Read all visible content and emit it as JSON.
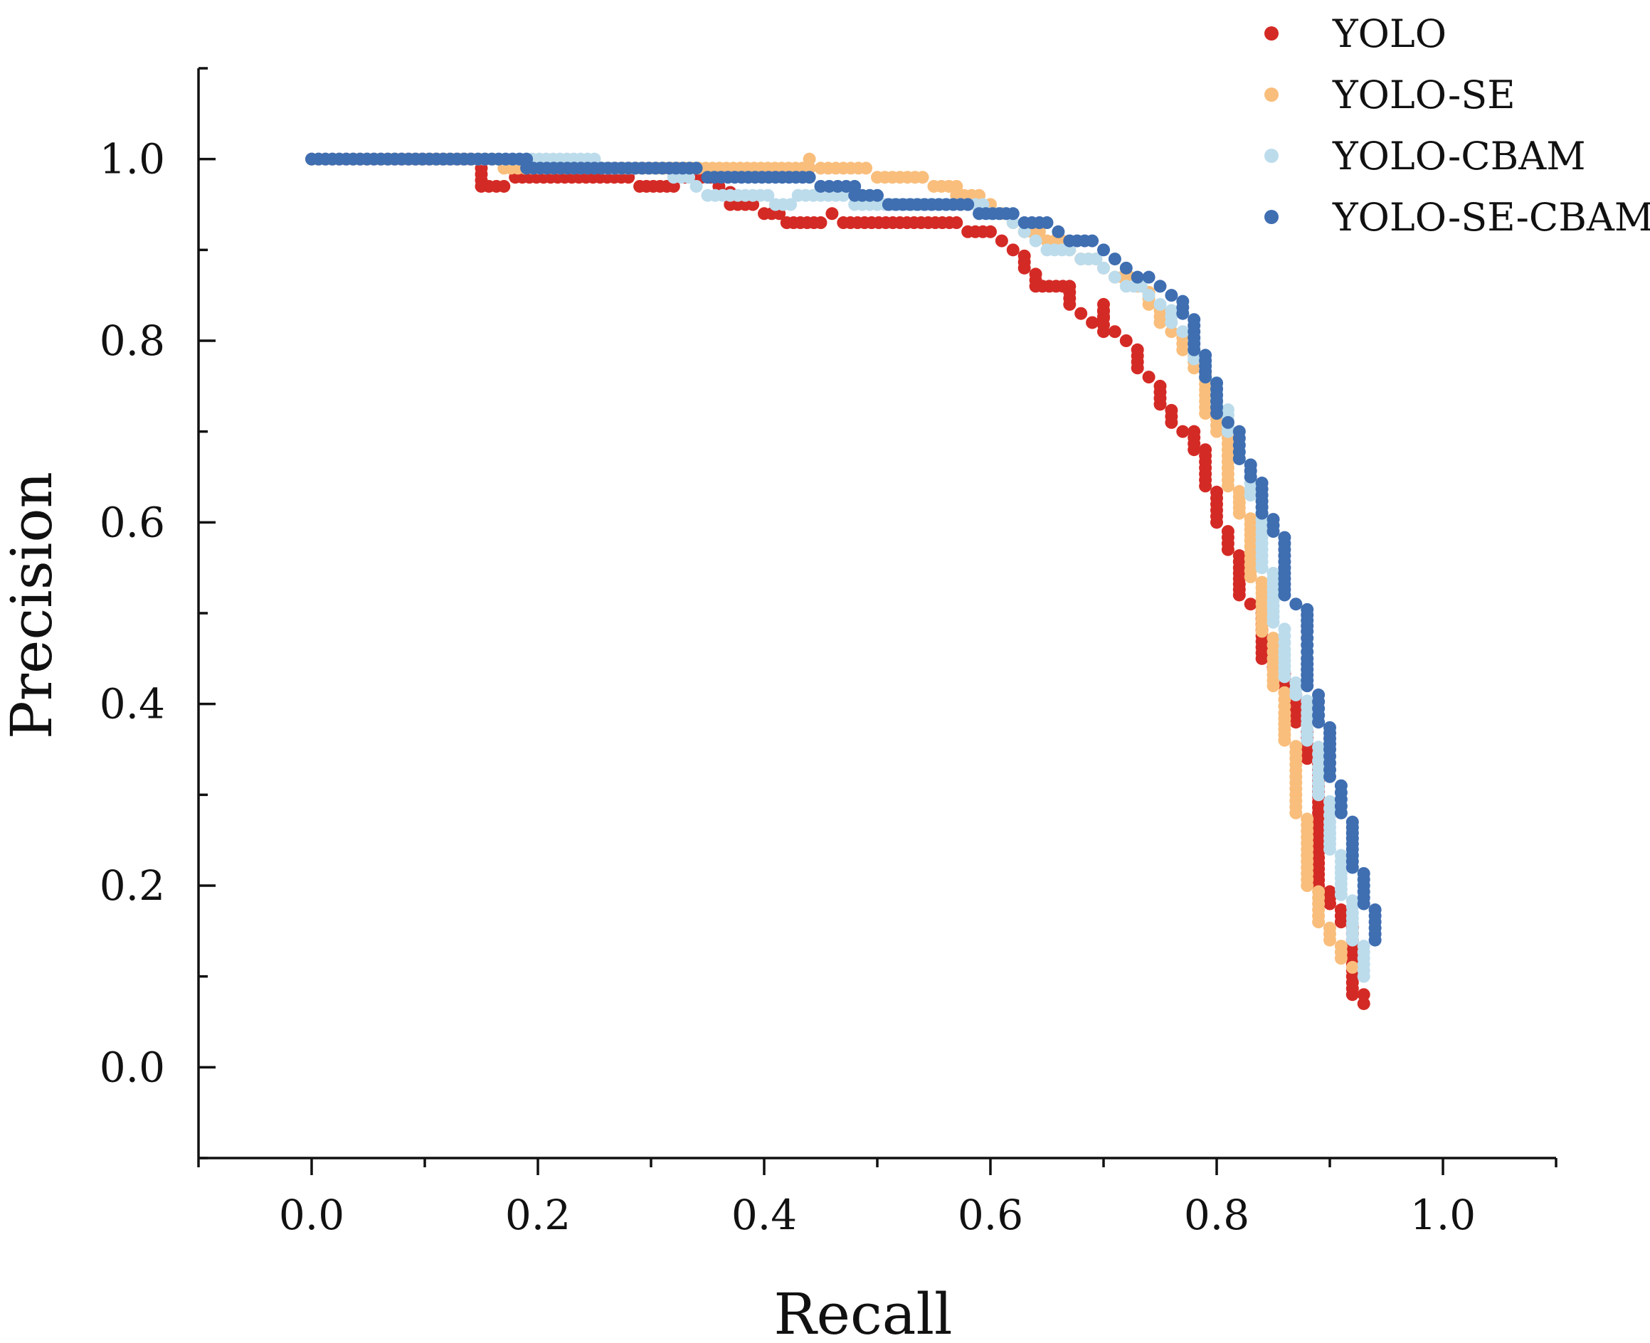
{
  "chart_data": {
    "type": "scatter",
    "title": "",
    "xlabel": "Recall",
    "ylabel": "Precision",
    "xlim": [
      -0.1,
      1.1
    ],
    "ylim": [
      -0.1,
      1.1
    ],
    "xticks": [
      "0.0",
      "0.2",
      "0.4",
      "0.6",
      "0.8",
      "1.0"
    ],
    "yticks": [
      "0.0",
      "0.2",
      "0.4",
      "0.6",
      "0.8",
      "1.0"
    ],
    "legend_position": "top-right",
    "series": [
      {
        "name": "YOLO",
        "color": "#d42a25",
        "points": [
          [
            0,
            1.0
          ],
          [
            0.14,
            1.0
          ],
          [
            0.15,
            0.99
          ],
          [
            0.15,
            0.97
          ],
          [
            0.17,
            0.97
          ],
          [
            0.18,
            0.98
          ],
          [
            0.28,
            0.98
          ],
          [
            0.29,
            0.97
          ],
          [
            0.32,
            0.97
          ],
          [
            0.33,
            0.98
          ],
          [
            0.36,
            0.97
          ],
          [
            0.37,
            0.95
          ],
          [
            0.39,
            0.95
          ],
          [
            0.4,
            0.94
          ],
          [
            0.42,
            0.93
          ],
          [
            0.45,
            0.93
          ],
          [
            0.46,
            0.94
          ],
          [
            0.47,
            0.93
          ],
          [
            0.57,
            0.93
          ],
          [
            0.58,
            0.92
          ],
          [
            0.6,
            0.92
          ],
          [
            0.61,
            0.91
          ],
          [
            0.62,
            0.9
          ],
          [
            0.63,
            0.88
          ],
          [
            0.64,
            0.86
          ],
          [
            0.67,
            0.86
          ],
          [
            0.67,
            0.84
          ],
          [
            0.68,
            0.83
          ],
          [
            0.69,
            0.82
          ],
          [
            0.7,
            0.84
          ],
          [
            0.7,
            0.81
          ],
          [
            0.71,
            0.81
          ],
          [
            0.72,
            0.8
          ],
          [
            0.73,
            0.79
          ],
          [
            0.73,
            0.77
          ],
          [
            0.74,
            0.76
          ],
          [
            0.75,
            0.75
          ],
          [
            0.75,
            0.73
          ],
          [
            0.76,
            0.71
          ],
          [
            0.77,
            0.7
          ],
          [
            0.78,
            0.7
          ],
          [
            0.78,
            0.68
          ],
          [
            0.79,
            0.68
          ],
          [
            0.79,
            0.64
          ],
          [
            0.8,
            0.62
          ],
          [
            0.8,
            0.6
          ],
          [
            0.81,
            0.59
          ],
          [
            0.81,
            0.57
          ],
          [
            0.82,
            0.55
          ],
          [
            0.82,
            0.52
          ],
          [
            0.83,
            0.51
          ],
          [
            0.84,
            0.5
          ],
          [
            0.84,
            0.45
          ],
          [
            0.85,
            0.44
          ],
          [
            0.86,
            0.42
          ],
          [
            0.87,
            0.41
          ],
          [
            0.87,
            0.38
          ],
          [
            0.88,
            0.37
          ],
          [
            0.88,
            0.34
          ],
          [
            0.89,
            0.28
          ],
          [
            0.89,
            0.2
          ],
          [
            0.9,
            0.18
          ],
          [
            0.91,
            0.16
          ],
          [
            0.92,
            0.12
          ],
          [
            0.92,
            0.08
          ],
          [
            0.93,
            0.08
          ],
          [
            0.93,
            0.07
          ]
        ]
      },
      {
        "name": "YOLO-SE",
        "color": "#f9be7c",
        "points": [
          [
            0,
            1.0
          ],
          [
            0.16,
            1.0
          ],
          [
            0.17,
            0.99
          ],
          [
            0.33,
            0.99
          ],
          [
            0.44,
            0.99
          ],
          [
            0.44,
            1.0
          ],
          [
            0.45,
            0.99
          ],
          [
            0.49,
            0.99
          ],
          [
            0.5,
            0.98
          ],
          [
            0.54,
            0.98
          ],
          [
            0.55,
            0.97
          ],
          [
            0.57,
            0.97
          ],
          [
            0.57,
            0.96
          ],
          [
            0.59,
            0.96
          ],
          [
            0.6,
            0.95
          ],
          [
            0.61,
            0.94
          ],
          [
            0.62,
            0.93
          ],
          [
            0.63,
            0.92
          ],
          [
            0.65,
            0.91
          ],
          [
            0.67,
            0.9
          ],
          [
            0.68,
            0.89
          ],
          [
            0.7,
            0.88
          ],
          [
            0.71,
            0.87
          ],
          [
            0.73,
            0.86
          ],
          [
            0.74,
            0.84
          ],
          [
            0.75,
            0.82
          ],
          [
            0.76,
            0.81
          ],
          [
            0.77,
            0.79
          ],
          [
            0.78,
            0.77
          ],
          [
            0.79,
            0.74
          ],
          [
            0.79,
            0.72
          ],
          [
            0.8,
            0.7
          ],
          [
            0.81,
            0.66
          ],
          [
            0.81,
            0.64
          ],
          [
            0.82,
            0.61
          ],
          [
            0.83,
            0.58
          ],
          [
            0.83,
            0.54
          ],
          [
            0.84,
            0.51
          ],
          [
            0.84,
            0.48
          ],
          [
            0.85,
            0.45
          ],
          [
            0.85,
            0.42
          ],
          [
            0.86,
            0.39
          ],
          [
            0.86,
            0.36
          ],
          [
            0.87,
            0.32
          ],
          [
            0.87,
            0.28
          ],
          [
            0.88,
            0.24
          ],
          [
            0.88,
            0.2
          ],
          [
            0.89,
            0.18
          ],
          [
            0.89,
            0.16
          ],
          [
            0.9,
            0.14
          ],
          [
            0.91,
            0.12
          ],
          [
            0.92,
            0.11
          ]
        ]
      },
      {
        "name": "YOLO-CBAM",
        "color": "#bcdcec",
        "points": [
          [
            0,
            1.0
          ],
          [
            0.25,
            1.0
          ],
          [
            0.26,
            0.99
          ],
          [
            0.31,
            0.99
          ],
          [
            0.32,
            0.98
          ],
          [
            0.34,
            0.97
          ],
          [
            0.35,
            0.96
          ],
          [
            0.39,
            0.96
          ],
          [
            0.41,
            0.95
          ],
          [
            0.43,
            0.96
          ],
          [
            0.47,
            0.96
          ],
          [
            0.48,
            0.95
          ],
          [
            0.52,
            0.95
          ],
          [
            0.58,
            0.95
          ],
          [
            0.6,
            0.94
          ],
          [
            0.62,
            0.93
          ],
          [
            0.63,
            0.92
          ],
          [
            0.64,
            0.91
          ],
          [
            0.65,
            0.9
          ],
          [
            0.67,
            0.9
          ],
          [
            0.68,
            0.89
          ],
          [
            0.7,
            0.88
          ],
          [
            0.71,
            0.87
          ],
          [
            0.72,
            0.86
          ],
          [
            0.74,
            0.85
          ],
          [
            0.75,
            0.84
          ],
          [
            0.76,
            0.82
          ],
          [
            0.77,
            0.81
          ],
          [
            0.78,
            0.8
          ],
          [
            0.78,
            0.78
          ],
          [
            0.79,
            0.76
          ],
          [
            0.8,
            0.73
          ],
          [
            0.81,
            0.7
          ],
          [
            0.82,
            0.67
          ],
          [
            0.83,
            0.63
          ],
          [
            0.84,
            0.59
          ],
          [
            0.84,
            0.55
          ],
          [
            0.85,
            0.52
          ],
          [
            0.85,
            0.49
          ],
          [
            0.86,
            0.46
          ],
          [
            0.86,
            0.43
          ],
          [
            0.87,
            0.41
          ],
          [
            0.88,
            0.39
          ],
          [
            0.88,
            0.36
          ],
          [
            0.89,
            0.33
          ],
          [
            0.89,
            0.3
          ],
          [
            0.9,
            0.27
          ],
          [
            0.9,
            0.24
          ],
          [
            0.91,
            0.22
          ],
          [
            0.91,
            0.19
          ],
          [
            0.92,
            0.17
          ],
          [
            0.92,
            0.14
          ],
          [
            0.93,
            0.12
          ],
          [
            0.93,
            0.1
          ]
        ]
      },
      {
        "name": "YOLO-SE-CBAM",
        "color": "#3f6eb1",
        "points": [
          [
            0,
            1.0
          ],
          [
            0.19,
            1.0
          ],
          [
            0.19,
            0.99
          ],
          [
            0.34,
            0.99
          ],
          [
            0.35,
            0.98
          ],
          [
            0.44,
            0.98
          ],
          [
            0.45,
            0.97
          ],
          [
            0.48,
            0.97
          ],
          [
            0.48,
            0.96
          ],
          [
            0.5,
            0.96
          ],
          [
            0.51,
            0.95
          ],
          [
            0.58,
            0.95
          ],
          [
            0.59,
            0.94
          ],
          [
            0.62,
            0.94
          ],
          [
            0.63,
            0.93
          ],
          [
            0.65,
            0.93
          ],
          [
            0.66,
            0.92
          ],
          [
            0.67,
            0.91
          ],
          [
            0.69,
            0.91
          ],
          [
            0.7,
            0.9
          ],
          [
            0.71,
            0.89
          ],
          [
            0.72,
            0.88
          ],
          [
            0.73,
            0.87
          ],
          [
            0.74,
            0.87
          ],
          [
            0.75,
            0.86
          ],
          [
            0.76,
            0.85
          ],
          [
            0.77,
            0.83
          ],
          [
            0.78,
            0.81
          ],
          [
            0.78,
            0.79
          ],
          [
            0.79,
            0.76
          ],
          [
            0.8,
            0.74
          ],
          [
            0.8,
            0.72
          ],
          [
            0.81,
            0.71
          ],
          [
            0.82,
            0.7
          ],
          [
            0.82,
            0.67
          ],
          [
            0.83,
            0.65
          ],
          [
            0.84,
            0.63
          ],
          [
            0.84,
            0.61
          ],
          [
            0.85,
            0.59
          ],
          [
            0.86,
            0.57
          ],
          [
            0.86,
            0.55
          ],
          [
            0.86,
            0.52
          ],
          [
            0.87,
            0.51
          ],
          [
            0.88,
            0.48
          ],
          [
            0.88,
            0.45
          ],
          [
            0.88,
            0.42
          ],
          [
            0.89,
            0.41
          ],
          [
            0.89,
            0.38
          ],
          [
            0.9,
            0.35
          ],
          [
            0.9,
            0.32
          ],
          [
            0.91,
            0.31
          ],
          [
            0.91,
            0.28
          ],
          [
            0.92,
            0.27
          ],
          [
            0.92,
            0.24
          ],
          [
            0.92,
            0.22
          ],
          [
            0.93,
            0.2
          ],
          [
            0.93,
            0.18
          ],
          [
            0.94,
            0.16
          ],
          [
            0.94,
            0.14
          ]
        ]
      }
    ]
  }
}
